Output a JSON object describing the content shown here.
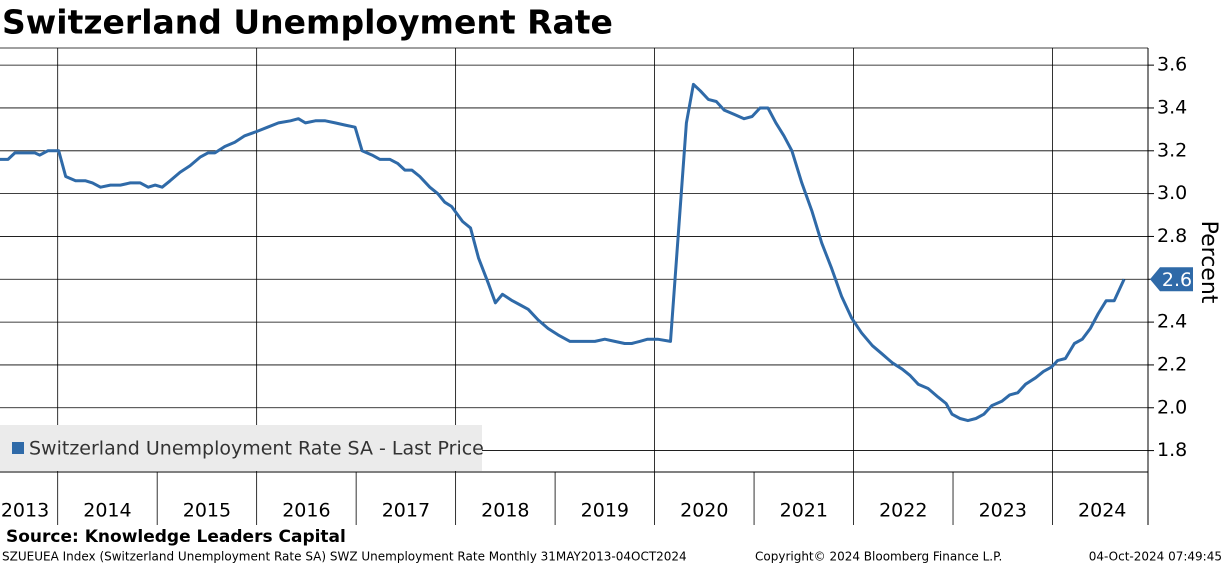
{
  "chart_data": {
    "type": "line",
    "title": "Switzerland Unemployment Rate",
    "y_label": "Percent",
    "source": "Source: Knowledge Leaders Capital",
    "footer_left": "SZUEUEA Index (Switzerland Unemployment Rate SA) SWZ Unemployment Rate  Monthly 31MAY2013-04OCT2024",
    "footer_center": "Copyright© 2024 Bloomberg Finance L.P.",
    "footer_right": "04-Oct-2024 07:49:45",
    "legend_position": "lower left",
    "grid": true,
    "xlim": [
      2013.42,
      2024.96
    ],
    "xticks": [
      2013,
      2014,
      2015,
      2016,
      2017,
      2018,
      2019,
      2020,
      2021,
      2022,
      2023,
      2024
    ],
    "ylim": [
      1.7,
      3.68
    ],
    "yticks": [
      1.8,
      {
        "value": 2,
        "label": "2.0"
      },
      2.2,
      2.4,
      2.6,
      2.8,
      {
        "value": 3,
        "label": "3.0"
      },
      3.2,
      3.4,
      3.6
    ],
    "x": [
      2013.42,
      2013.5,
      2013.57,
      2013.67,
      2013.77,
      2013.82,
      2013.9,
      2014.01,
      2014.08,
      2014.18,
      2014.28,
      2014.35,
      2014.43,
      2014.53,
      2014.63,
      2014.73,
      2014.83,
      2014.91,
      2014.98,
      2015.05,
      2015.13,
      2015.23,
      2015.33,
      2015.43,
      2015.51,
      2015.58,
      2015.68,
      2015.78,
      2015.88,
      2016.0,
      2016.11,
      2016.22,
      2016.34,
      2016.42,
      2016.49,
      2016.59,
      2016.69,
      2016.79,
      2016.89,
      2016.99,
      2017.06,
      2017.16,
      2017.24,
      2017.34,
      2017.42,
      2017.49,
      2017.56,
      2017.64,
      2017.74,
      2017.82,
      2017.89,
      2017.96,
      2018.07,
      2018.15,
      2018.23,
      2018.33,
      2018.4,
      2018.47,
      2018.57,
      2018.65,
      2018.73,
      2018.83,
      2018.93,
      2019.03,
      2019.15,
      2019.27,
      2019.4,
      2019.5,
      2019.6,
      2019.7,
      2019.77,
      2019.85,
      2019.93,
      2020.03,
      2020.16,
      2020.32,
      2020.39,
      2020.46,
      2020.54,
      2020.62,
      2020.7,
      2020.8,
      2020.9,
      2020.98,
      2021.06,
      2021.14,
      2021.22,
      2021.3,
      2021.38,
      2021.48,
      2021.58,
      2021.68,
      2021.78,
      2021.88,
      2021.98,
      2022.08,
      2022.19,
      2022.29,
      2022.39,
      2022.49,
      2022.57,
      2022.65,
      2022.75,
      2022.85,
      2022.93,
      2022.99,
      2023.07,
      2023.15,
      2023.23,
      2023.31,
      2023.39,
      2023.49,
      2023.57,
      2023.65,
      2023.73,
      2023.83,
      2023.91,
      2023.99,
      2024.05,
      2024.13,
      2024.22,
      2024.3,
      2024.38,
      2024.46,
      2024.54,
      2024.62,
      2024.72
    ],
    "series": [
      {
        "name": "Switzerland Unemployment Rate SA - Last Price",
        "color": "#2f6aa8",
        "values": [
          3.16,
          3.16,
          3.19,
          3.19,
          3.19,
          3.18,
          3.2,
          3.2,
          3.08,
          3.06,
          3.06,
          3.05,
          3.03,
          3.04,
          3.04,
          3.05,
          3.05,
          3.03,
          3.04,
          3.03,
          3.06,
          3.1,
          3.13,
          3.17,
          3.19,
          3.19,
          3.22,
          3.24,
          3.27,
          3.29,
          3.31,
          3.33,
          3.34,
          3.35,
          3.33,
          3.34,
          3.34,
          3.33,
          3.32,
          3.31,
          3.2,
          3.18,
          3.16,
          3.16,
          3.14,
          3.11,
          3.11,
          3.08,
          3.03,
          3.0,
          2.96,
          2.94,
          2.87,
          2.84,
          2.7,
          2.58,
          2.49,
          2.53,
          2.5,
          2.48,
          2.46,
          2.41,
          2.37,
          2.34,
          2.31,
          2.31,
          2.31,
          2.32,
          2.31,
          2.3,
          2.3,
          2.31,
          2.32,
          2.32,
          2.31,
          3.33,
          3.51,
          3.48,
          3.44,
          3.43,
          3.39,
          3.37,
          3.35,
          3.36,
          3.4,
          3.4,
          3.33,
          3.27,
          3.2,
          3.05,
          2.92,
          2.77,
          2.65,
          2.52,
          2.42,
          2.35,
          2.29,
          2.25,
          2.21,
          2.18,
          2.15,
          2.11,
          2.09,
          2.05,
          2.02,
          1.97,
          1.95,
          1.94,
          1.95,
          1.97,
          2.01,
          2.03,
          2.06,
          2.07,
          2.11,
          2.14,
          2.17,
          2.19,
          2.22,
          2.23,
          2.3,
          2.32,
          2.37,
          2.44,
          2.5,
          2.5,
          2.6
        ]
      }
    ]
  }
}
